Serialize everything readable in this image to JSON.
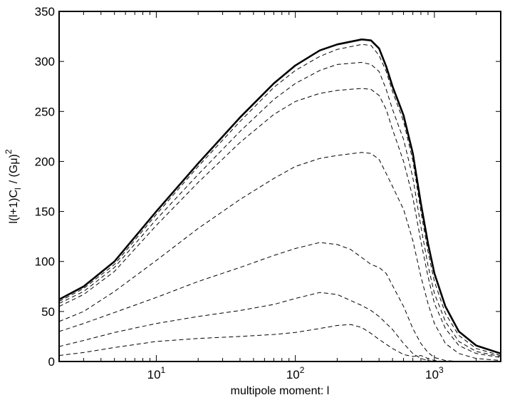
{
  "chart_data": {
    "type": "line",
    "title": "",
    "xlabel": "multipole moment: l",
    "ylabel": {
      "main": "l(l+1)C",
      "sub": "l",
      "tail": "/ (Gμ)",
      "sup": "2"
    },
    "xscale": "log",
    "xlim": [
      2,
      3000
    ],
    "ylim": [
      0,
      350
    ],
    "grid": false,
    "legend": "none",
    "x_ticks": [
      {
        "value": 10,
        "base": "10",
        "exp": "1"
      },
      {
        "value": 100,
        "base": "10",
        "exp": "2"
      },
      {
        "value": 1000,
        "base": "10",
        "exp": "3"
      }
    ],
    "y_ticks": [
      0,
      50,
      100,
      150,
      200,
      250,
      300,
      350
    ],
    "series": [
      {
        "style": "solid",
        "points": [
          [
            2,
            62
          ],
          [
            3,
            75
          ],
          [
            5,
            100
          ],
          [
            10,
            150
          ],
          [
            20,
            198
          ],
          [
            40,
            244
          ],
          [
            70,
            278
          ],
          [
            100,
            296
          ],
          [
            150,
            311
          ],
          [
            200,
            317
          ],
          [
            300,
            322
          ],
          [
            350,
            321
          ],
          [
            400,
            313
          ],
          [
            450,
            295
          ],
          [
            500,
            275
          ],
          [
            600,
            246
          ],
          [
            700,
            208
          ],
          [
            800,
            158
          ],
          [
            900,
            118
          ],
          [
            1000,
            88
          ],
          [
            1200,
            55
          ],
          [
            1500,
            30
          ],
          [
            2000,
            16
          ],
          [
            3000,
            8
          ]
        ]
      },
      {
        "style": "dash",
        "points": [
          [
            2,
            60
          ],
          [
            3,
            73
          ],
          [
            5,
            97
          ],
          [
            10,
            147
          ],
          [
            20,
            195
          ],
          [
            40,
            240
          ],
          [
            70,
            274
          ],
          [
            100,
            291
          ],
          [
            150,
            305
          ],
          [
            200,
            312
          ],
          [
            300,
            317
          ],
          [
            350,
            316
          ],
          [
            400,
            306
          ],
          [
            450,
            290
          ],
          [
            500,
            270
          ],
          [
            600,
            240
          ],
          [
            700,
            201
          ],
          [
            800,
            150
          ],
          [
            900,
            110
          ],
          [
            1000,
            80
          ],
          [
            1200,
            48
          ],
          [
            1500,
            26
          ],
          [
            2000,
            13
          ],
          [
            3000,
            6
          ]
        ]
      },
      {
        "style": "dash",
        "points": [
          [
            2,
            58
          ],
          [
            3,
            70
          ],
          [
            5,
            94
          ],
          [
            10,
            142
          ],
          [
            20,
            187
          ],
          [
            40,
            230
          ],
          [
            70,
            262
          ],
          [
            100,
            278
          ],
          [
            150,
            291
          ],
          [
            200,
            297
          ],
          [
            300,
            299
          ],
          [
            350,
            297
          ],
          [
            400,
            290
          ],
          [
            450,
            272
          ],
          [
            500,
            252
          ],
          [
            600,
            222
          ],
          [
            700,
            184
          ],
          [
            800,
            135
          ],
          [
            900,
            96
          ],
          [
            1000,
            68
          ],
          [
            1200,
            40
          ],
          [
            1500,
            20
          ],
          [
            2000,
            10
          ],
          [
            3000,
            5
          ]
        ]
      },
      {
        "style": "dash",
        "points": [
          [
            2,
            55
          ],
          [
            3,
            67
          ],
          [
            5,
            90
          ],
          [
            10,
            136
          ],
          [
            20,
            179
          ],
          [
            40,
            219
          ],
          [
            70,
            247
          ],
          [
            100,
            260
          ],
          [
            150,
            268
          ],
          [
            200,
            271
          ],
          [
            300,
            273
          ],
          [
            350,
            272
          ],
          [
            400,
            266
          ],
          [
            450,
            252
          ],
          [
            500,
            232
          ],
          [
            600,
            200
          ],
          [
            700,
            164
          ],
          [
            800,
            120
          ],
          [
            900,
            85
          ],
          [
            1000,
            58
          ],
          [
            1200,
            33
          ],
          [
            1500,
            16
          ],
          [
            2000,
            8
          ],
          [
            3000,
            4
          ]
        ]
      },
      {
        "style": "dash",
        "points": [
          [
            2,
            40
          ],
          [
            3,
            50
          ],
          [
            5,
            70
          ],
          [
            10,
            101
          ],
          [
            20,
            133
          ],
          [
            40,
            162
          ],
          [
            70,
            183
          ],
          [
            100,
            195
          ],
          [
            150,
            203
          ],
          [
            200,
            206
          ],
          [
            300,
            209
          ],
          [
            350,
            208
          ],
          [
            400,
            202
          ],
          [
            450,
            188
          ],
          [
            500,
            175
          ],
          [
            600,
            152
          ],
          [
            700,
            121
          ],
          [
            800,
            85
          ],
          [
            900,
            58
          ],
          [
            1000,
            38
          ],
          [
            1200,
            18
          ],
          [
            1500,
            8
          ],
          [
            2000,
            3
          ],
          [
            3000,
            1
          ]
        ]
      },
      {
        "style": "dash",
        "points": [
          [
            2,
            30
          ],
          [
            3,
            38
          ],
          [
            5,
            49
          ],
          [
            10,
            64
          ],
          [
            20,
            80
          ],
          [
            40,
            94
          ],
          [
            70,
            106
          ],
          [
            100,
            113
          ],
          [
            150,
            119
          ],
          [
            200,
            117
          ],
          [
            250,
            112
          ],
          [
            300,
            104
          ],
          [
            350,
            97
          ],
          [
            400,
            94
          ],
          [
            450,
            88
          ],
          [
            500,
            76
          ],
          [
            600,
            55
          ],
          [
            700,
            33
          ],
          [
            800,
            18
          ],
          [
            900,
            9
          ],
          [
            1000,
            4
          ],
          [
            1200,
            1
          ],
          [
            1500,
            0
          ],
          [
            3000,
            0
          ]
        ]
      },
      {
        "style": "dash",
        "points": [
          [
            2,
            15
          ],
          [
            3,
            21
          ],
          [
            5,
            29
          ],
          [
            10,
            38
          ],
          [
            20,
            45
          ],
          [
            40,
            51
          ],
          [
            70,
            57
          ],
          [
            100,
            63
          ],
          [
            150,
            69
          ],
          [
            200,
            67
          ],
          [
            300,
            56
          ],
          [
            350,
            51
          ],
          [
            400,
            45
          ],
          [
            500,
            32
          ],
          [
            600,
            18
          ],
          [
            700,
            8
          ],
          [
            800,
            3
          ],
          [
            900,
            1
          ],
          [
            1000,
            0
          ],
          [
            3000,
            0
          ]
        ]
      },
      {
        "style": "dash",
        "points": [
          [
            2,
            6
          ],
          [
            3,
            9
          ],
          [
            5,
            14
          ],
          [
            10,
            20
          ],
          [
            20,
            23
          ],
          [
            40,
            25
          ],
          [
            70,
            27
          ],
          [
            100,
            29
          ],
          [
            150,
            33
          ],
          [
            200,
            36
          ],
          [
            250,
            37
          ],
          [
            300,
            34
          ],
          [
            350,
            28
          ],
          [
            400,
            22
          ],
          [
            500,
            13
          ],
          [
            600,
            7
          ],
          [
            700,
            5
          ],
          [
            800,
            6
          ],
          [
            900,
            3
          ],
          [
            1000,
            1
          ],
          [
            1200,
            0
          ],
          [
            3000,
            0
          ]
        ]
      }
    ]
  }
}
